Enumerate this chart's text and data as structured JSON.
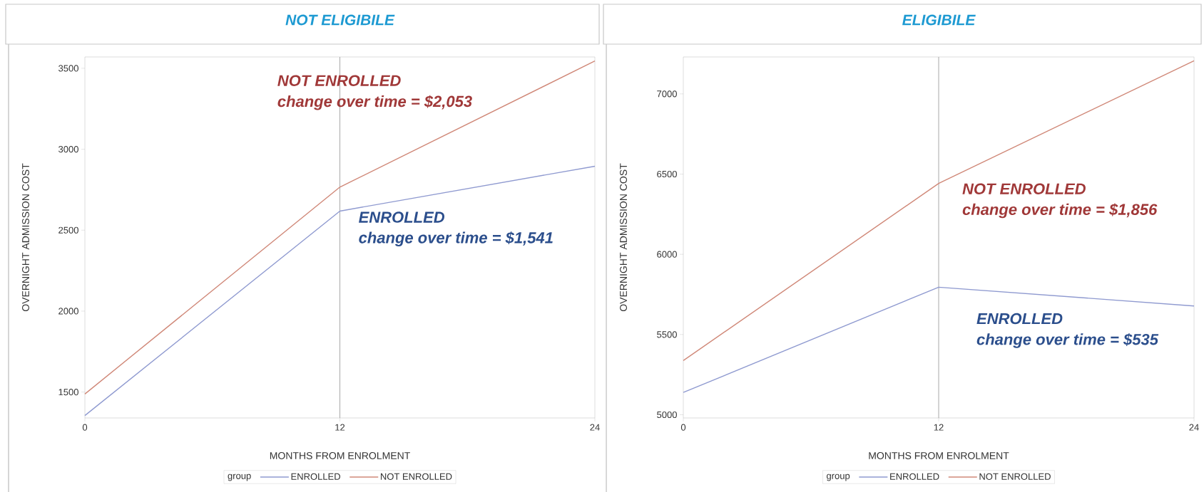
{
  "chart_data": [
    {
      "type": "line",
      "title": "NOT ELIGIBILE",
      "xlabel": "MONTHS FROM ENROLMENT",
      "ylabel": "OVERNIGHT ADMISSION COST",
      "legend_title": "group",
      "legend": "bottom",
      "marker": "none",
      "x": [
        0,
        12,
        24
      ],
      "xlim": [
        0,
        24
      ],
      "xticks": [
        0,
        12,
        24
      ],
      "ylim": [
        1340,
        3570
      ],
      "yticks": [
        1500,
        2000,
        2500,
        3000,
        3500
      ],
      "series": [
        {
          "name": "ENROLLED",
          "color": "#8f9ad0",
          "values": [
            1355,
            2618,
            2895
          ]
        },
        {
          "name": "NOT ENROLLED",
          "color": "#d08878",
          "values": [
            1488,
            2766,
            3545
          ]
        }
      ],
      "ref_lines": [
        {
          "axis": "x",
          "value": 12,
          "color": "#a8a8a8"
        }
      ],
      "annotations": [
        "NOT ENROLLED",
        "change over time = $2,053",
        "ENROLLED",
        "change over time = $1,541"
      ]
    },
    {
      "type": "line",
      "title": "ELIGIBILE",
      "xlabel": "MONTHS FROM ENROLMENT",
      "ylabel": "OVERNIGHT ADMISSION COST",
      "legend_title": "group",
      "legend": "bottom",
      "marker": "none",
      "x": [
        0,
        12,
        24
      ],
      "xlim": [
        0,
        24
      ],
      "xticks": [
        0,
        12,
        24
      ],
      "ylim": [
        4980,
        7230
      ],
      "yticks": [
        5000,
        5500,
        6000,
        6500,
        7000
      ],
      "series": [
        {
          "name": "ENROLLED",
          "color": "#8f9ad0",
          "values": [
            5139,
            5795,
            5678
          ]
        },
        {
          "name": "NOT ENROLLED",
          "color": "#d08878",
          "values": [
            5338,
            6442,
            7206
          ]
        }
      ],
      "ref_lines": [
        {
          "axis": "x",
          "value": 12,
          "color": "#a8a8a8"
        }
      ],
      "annotations": [
        "NOT ENROLLED",
        "change over time =  $1,856",
        "ENROLLED",
        "change over time = $535"
      ]
    }
  ]
}
